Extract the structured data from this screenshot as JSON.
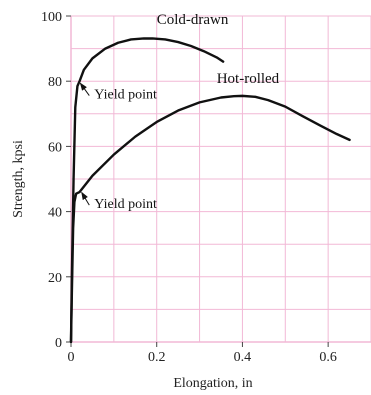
{
  "chart_data": {
    "type": "line",
    "title": "",
    "xlabel": "Elongation, in",
    "ylabel": "Strength, kpsi",
    "xlim": [
      0,
      0.7
    ],
    "ylim": [
      0,
      100
    ],
    "xticks": [
      0,
      0.2,
      0.4,
      0.6
    ],
    "xtick_labels": [
      "0",
      "0.2",
      "0.4",
      "0.6"
    ],
    "yticks": [
      0,
      20,
      40,
      60,
      80,
      100
    ],
    "ytick_labels": [
      "0",
      "20",
      "40",
      "60",
      "80",
      "100"
    ],
    "grid": true,
    "grid_color": "#f2b8d6",
    "series": [
      {
        "name": "Cold-drawn",
        "color": "#111111",
        "x": [
          0.0,
          0.002,
          0.006,
          0.01,
          0.015,
          0.02,
          0.03,
          0.05,
          0.08,
          0.11,
          0.14,
          0.17,
          0.19,
          0.22,
          0.25,
          0.28,
          0.31,
          0.34,
          0.355
        ],
        "y": [
          0,
          20,
          50,
          72,
          78.5,
          80,
          83.5,
          87,
          90,
          91.8,
          92.8,
          93.1,
          93.1,
          92.8,
          92.0,
          90.8,
          89.2,
          87.3,
          86.0
        ]
      },
      {
        "name": "Hot-rolled",
        "color": "#111111",
        "x": [
          0.0,
          0.002,
          0.005,
          0.008,
          0.012,
          0.02,
          0.05,
          0.1,
          0.15,
          0.2,
          0.25,
          0.3,
          0.35,
          0.38,
          0.4,
          0.43,
          0.46,
          0.5,
          0.54,
          0.58,
          0.62,
          0.65
        ],
        "y": [
          0,
          15,
          35,
          43,
          45.5,
          46,
          51,
          57.5,
          63,
          67.5,
          71,
          73.5,
          75,
          75.4,
          75.5,
          75.2,
          74.2,
          72.2,
          69.3,
          66.5,
          63.8,
          62.0
        ]
      }
    ],
    "annotations": [
      {
        "text": "Yield point",
        "target_x": 0.015,
        "target_y": 79.5,
        "text_x": 0.052,
        "text_y": 76.2
      },
      {
        "text": "Yield point",
        "target_x": 0.018,
        "target_y": 46.0,
        "text_x": 0.052,
        "text_y": 42.6
      }
    ],
    "series_labels": [
      {
        "text": "Cold-drawn",
        "x": 0.2,
        "y": 97.5
      },
      {
        "text": "Hot-rolled",
        "x": 0.34,
        "y": 79.5
      }
    ]
  }
}
